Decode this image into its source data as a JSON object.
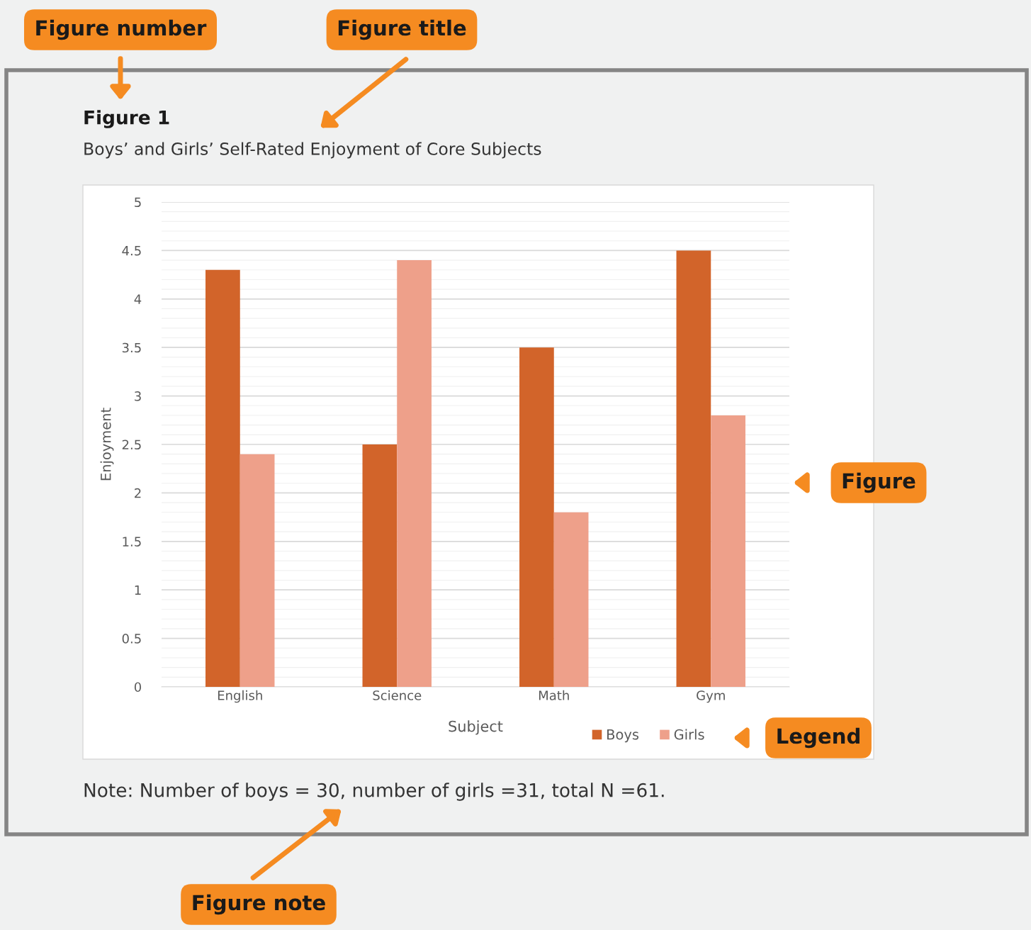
{
  "chart_data": {
    "type": "bar",
    "title": "Figure 1",
    "subtitle": "Boys’ and Girls’ Self-Rated Enjoyment of Core Subjects",
    "xlabel": "Subject",
    "ylabel": "Enjoyment",
    "categories": [
      "English",
      "Science",
      "Math",
      "Gym"
    ],
    "series": [
      {
        "name": "Boys",
        "color": "#d2642a",
        "values": [
          4.3,
          2.5,
          3.5,
          4.5
        ]
      },
      {
        "name": "Girls",
        "color": "#eea08a",
        "values": [
          2.4,
          4.4,
          1.8,
          2.8
        ]
      }
    ],
    "ylim": [
      0,
      5
    ],
    "yticks": [
      0,
      0.5,
      1,
      1.5,
      2,
      2.5,
      3,
      3.5,
      4,
      4.5,
      5
    ],
    "grid": "y",
    "legend": "bottom right",
    "annotations": [
      "Note: Number of boys = 30, number of girls =31, total N =61.",
      "Figure number",
      "Figure title",
      "Figure",
      "Legend",
      "Figure note"
    ]
  }
}
